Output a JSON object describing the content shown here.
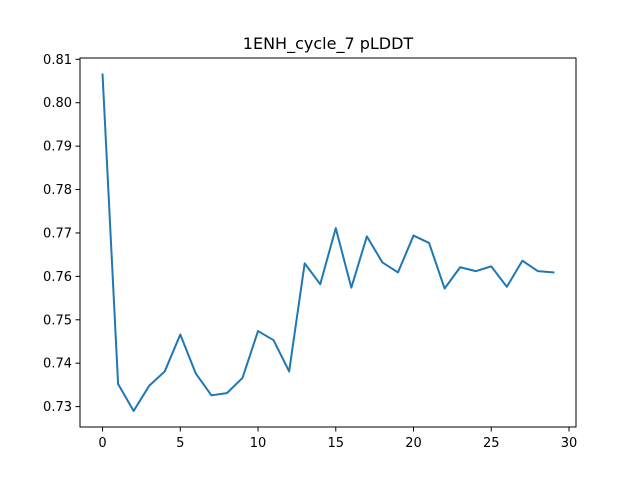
{
  "chart_data": {
    "type": "line",
    "title": "1ENH_cycle_7 pLDDT",
    "xlabel": "",
    "ylabel": "",
    "xlim": [
      -1.45,
      30.45
    ],
    "ylim": [
      0.7253,
      0.8103
    ],
    "xticks": [
      0,
      5,
      10,
      15,
      20,
      25,
      30
    ],
    "xtick_labels": [
      "0",
      "5",
      "10",
      "15",
      "20",
      "25",
      "30"
    ],
    "yticks": [
      0.73,
      0.74,
      0.75,
      0.76,
      0.77,
      0.78,
      0.79,
      0.8,
      0.81
    ],
    "ytick_labels": [
      "0.73",
      "0.74",
      "0.75",
      "0.76",
      "0.77",
      "0.78",
      "0.79",
      "0.80",
      "0.81"
    ],
    "grid": false,
    "series": [
      {
        "color": "#1f77b4",
        "x": [
          0,
          1,
          2,
          3,
          4,
          5,
          6,
          7,
          8,
          9,
          10,
          11,
          12,
          13,
          14,
          15,
          16,
          17,
          18,
          19,
          20,
          21,
          22,
          23,
          24,
          25,
          26,
          27,
          28,
          29
        ],
        "values": [
          0.8065,
          0.7352,
          0.729,
          0.7348,
          0.7381,
          0.7466,
          0.7376,
          0.7326,
          0.7331,
          0.7366,
          0.7474,
          0.7453,
          0.7381,
          0.763,
          0.7582,
          0.7711,
          0.7574,
          0.7692,
          0.7632,
          0.7609,
          0.7694,
          0.7677,
          0.7572,
          0.7621,
          0.7612,
          0.7623,
          0.7576,
          0.7636,
          0.7612,
          0.7609
        ]
      }
    ]
  }
}
